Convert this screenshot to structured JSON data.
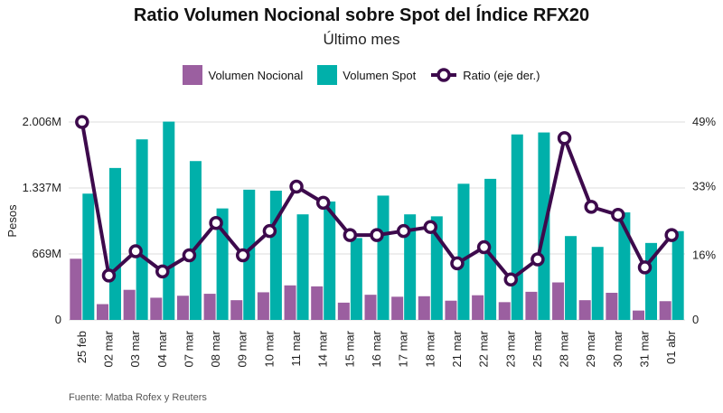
{
  "title": "Ratio Volumen Nocional sobre Spot del Índice RFX20",
  "subtitle": "Último mes",
  "source": "Fuente: Matba Rofex y Reuters",
  "legend": {
    "nocional": "Volumen Nocional",
    "spot": "Volumen Spot",
    "ratio": "Ratio (eje der.)"
  },
  "colors": {
    "nocional": "#9b5fa0",
    "spot": "#00b0aa",
    "ratio": "#3d0a4c",
    "grid": "#dddddd"
  },
  "chart_data": {
    "type": "bar",
    "title": "Ratio Volumen Nocional sobre Spot del Índice RFX20",
    "subtitle": "Último mes",
    "categories": [
      "25 feb",
      "02 mar",
      "03 mar",
      "04 mar",
      "07 mar",
      "08 mar",
      "09 mar",
      "10 mar",
      "11 mar",
      "14 mar",
      "15 mar",
      "16 mar",
      "17 mar",
      "18 mar",
      "21 mar",
      "22 mar",
      "23 mar",
      "25 mar",
      "28 mar",
      "29 mar",
      "30 mar",
      "31 mar",
      "01 abr"
    ],
    "ylabel": "Pesos",
    "y_ticks": [
      0,
      669,
      1337,
      2006
    ],
    "y_tick_labels": [
      "0",
      "669M",
      "1.337M",
      "2.006M"
    ],
    "ylim": [
      0,
      2006
    ],
    "y2_ticks": [
      0,
      16,
      33,
      49
    ],
    "y2_tick_labels": [
      "0",
      "16%",
      "33%",
      "49%"
    ],
    "y2lim": [
      0,
      49
    ],
    "grid": true,
    "legend_position": "top",
    "series": [
      {
        "name": "Volumen Nocional",
        "type": "bar",
        "axis": "left",
        "values": [
          620,
          160,
          305,
          225,
          245,
          265,
          200,
          280,
          350,
          340,
          175,
          255,
          235,
          240,
          195,
          250,
          180,
          285,
          380,
          200,
          275,
          95,
          190
        ]
      },
      {
        "name": "Volumen Spot",
        "type": "bar",
        "axis": "left",
        "values": [
          1280,
          1540,
          1830,
          2010,
          1610,
          1130,
          1320,
          1310,
          1070,
          1200,
          830,
          1260,
          1070,
          1050,
          1380,
          1430,
          1880,
          1900,
          850,
          740,
          1090,
          780,
          900
        ]
      },
      {
        "name": "Ratio (eje der.)",
        "type": "line",
        "axis": "right",
        "values": [
          49,
          11,
          17,
          12,
          16,
          24,
          16,
          22,
          33,
          29,
          21,
          21,
          22,
          23,
          14,
          18,
          10,
          15,
          45,
          28,
          26,
          13,
          21
        ]
      }
    ]
  }
}
